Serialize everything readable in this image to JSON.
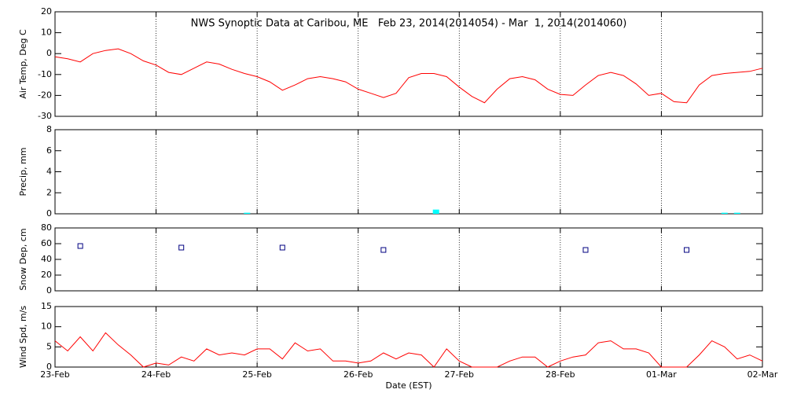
{
  "chart_data": [
    {
      "type": "line",
      "title": "NWS Synoptic Data at Caribou, ME   Feb 23, 2014(2014054) - Mar  1, 2014(2014060)",
      "y_label": "Air Temp, Deg C",
      "color": "#ff0000",
      "x": [
        0,
        0.125,
        0.25,
        0.375,
        0.5,
        0.625,
        0.75,
        0.875,
        1,
        1.125,
        1.25,
        1.375,
        1.5,
        1.625,
        1.75,
        1.875,
        2,
        2.125,
        2.25,
        2.375,
        2.5,
        2.625,
        2.75,
        2.875,
        3,
        3.125,
        3.25,
        3.375,
        3.5,
        3.625,
        3.75,
        3.875,
        4,
        4.125,
        4.25,
        4.375,
        4.5,
        4.625,
        4.75,
        4.875,
        5,
        5.125,
        5.25,
        5.375,
        5.5,
        5.625,
        5.75,
        5.875,
        6,
        6.125,
        6.25,
        6.375,
        6.5,
        6.625,
        6.75,
        6.875,
        7
      ],
      "values": [
        -1.5,
        -2.5,
        -4,
        0,
        1.5,
        2.3,
        0,
        -3.5,
        -5.5,
        -9,
        -10,
        -7,
        -4,
        -5,
        -7.5,
        -9.5,
        -11,
        -13.5,
        -17.5,
        -15,
        -12,
        -11,
        -12,
        -13.5,
        -17,
        -19,
        -21,
        -19,
        -11.5,
        -9.5,
        -9.5,
        -11,
        -16,
        -20.5,
        -23.5,
        -17,
        -12,
        -11,
        -12.5,
        -17,
        -19.5,
        -20,
        -15,
        -10.5,
        -9,
        -10.5,
        -14.5,
        -20,
        -19,
        -23,
        -23.5,
        -15,
        -10.5,
        -9.5,
        -9,
        -8.5,
        -7
      ],
      "xlim": [
        0,
        7
      ],
      "ylim": [
        -30,
        20
      ],
      "yticks": [
        -30,
        -20,
        -10,
        0,
        10,
        20
      ]
    },
    {
      "type": "bar",
      "y_label": "Precip, mm",
      "color": "#00ffff",
      "x": [
        1.9,
        3.77,
        6.625,
        6.75
      ],
      "values": [
        0.1,
        0.4,
        0.1,
        0.1
      ],
      "xlim": [
        0,
        7
      ],
      "ylim": [
        0,
        8
      ],
      "yticks": [
        0,
        2,
        4,
        6,
        8
      ]
    },
    {
      "type": "scatter",
      "y_label": "Snow Dep, cm",
      "color": "#000080",
      "x": [
        0.25,
        1.25,
        2.25,
        3.25,
        5.25,
        6.25
      ],
      "values": [
        57,
        55,
        55,
        52,
        52,
        52
      ],
      "xlim": [
        0,
        7
      ],
      "ylim": [
        0,
        80
      ],
      "yticks": [
        0,
        20,
        40,
        60,
        80
      ]
    },
    {
      "type": "line",
      "y_label": "Wind Spd, m/s",
      "x_label": "Date (EST)",
      "color": "#ff0000",
      "x": [
        0,
        0.125,
        0.25,
        0.375,
        0.5,
        0.625,
        0.75,
        0.875,
        1,
        1.125,
        1.25,
        1.375,
        1.5,
        1.625,
        1.75,
        1.875,
        2,
        2.125,
        2.25,
        2.375,
        2.5,
        2.625,
        2.75,
        2.875,
        3,
        3.125,
        3.25,
        3.375,
        3.5,
        3.625,
        3.75,
        3.875,
        4,
        4.125,
        4.25,
        4.375,
        4.5,
        4.625,
        4.75,
        4.875,
        5,
        5.125,
        5.25,
        5.375,
        5.5,
        5.625,
        5.75,
        5.875,
        6,
        6.125,
        6.25,
        6.375,
        6.5,
        6.625,
        6.75,
        6.875,
        7
      ],
      "values": [
        6.5,
        4,
        7.5,
        4,
        8.5,
        5.5,
        3,
        0,
        1,
        0.5,
        2.5,
        1.5,
        4.5,
        3,
        3.5,
        3,
        4.5,
        4.5,
        2,
        6,
        4,
        4.5,
        1.5,
        1.5,
        1,
        1.5,
        3.5,
        2,
        3.5,
        3,
        0,
        4.5,
        1.5,
        0,
        0,
        0,
        1.5,
        2.5,
        2.5,
        0,
        1.5,
        2.5,
        3,
        6,
        6.5,
        4.5,
        4.5,
        3.5,
        0,
        0,
        0,
        3,
        6.5,
        5,
        2,
        3,
        1.5
      ],
      "xlim": [
        0,
        7
      ],
      "ylim": [
        0,
        15
      ],
      "yticks": [
        0,
        5,
        10,
        15
      ],
      "xticks": [
        {
          "value": 0,
          "label": "23-Feb"
        },
        {
          "value": 1,
          "label": "24-Feb"
        },
        {
          "value": 2,
          "label": "25-Feb"
        },
        {
          "value": 3,
          "label": "26-Feb"
        },
        {
          "value": 4,
          "label": "27-Feb"
        },
        {
          "value": 5,
          "label": "28-Feb"
        },
        {
          "value": 6,
          "label": "01-Mar"
        },
        {
          "value": 7,
          "label": "02-Mar"
        }
      ]
    }
  ]
}
